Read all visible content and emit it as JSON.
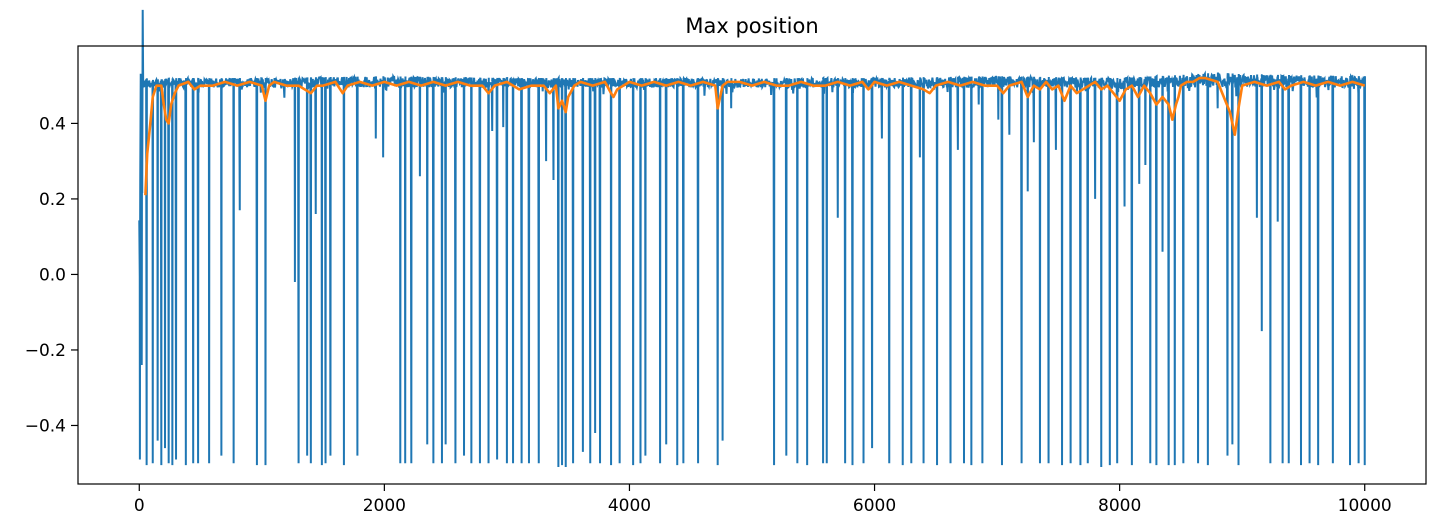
{
  "chart_data": {
    "type": "line",
    "title": "Max position",
    "xlabel": "",
    "ylabel": "",
    "xlim": [
      -500,
      10500
    ],
    "ylim": [
      -0.555,
      0.605
    ],
    "x_ticks": [
      0,
      2000,
      4000,
      6000,
      8000,
      10000
    ],
    "x_tick_labels": [
      "0",
      "2000",
      "4000",
      "6000",
      "8000",
      "10000"
    ],
    "y_ticks": [
      -0.4,
      -0.2,
      0.0,
      0.2,
      0.4
    ],
    "y_tick_labels": [
      "−0.4",
      "−0.2",
      "0.0",
      "0.2",
      "0.4"
    ],
    "grid": false,
    "legend": "none",
    "series": [
      {
        "color": "#1f77b4",
        "baseline": [
          [
            0,
            0.05
          ],
          [
            15,
            0.28
          ],
          [
            30,
            0.5
          ],
          [
            50,
            0.52
          ],
          [
            100,
            0.515
          ],
          [
            300,
            0.52
          ],
          [
            1000,
            0.52
          ],
          [
            2000,
            0.525
          ],
          [
            3000,
            0.52
          ],
          [
            4000,
            0.52
          ],
          [
            5000,
            0.52
          ],
          [
            6000,
            0.52
          ],
          [
            7000,
            0.525
          ],
          [
            8000,
            0.52
          ],
          [
            8600,
            0.53
          ],
          [
            8800,
            0.535
          ],
          [
            9000,
            0.53
          ],
          [
            10000,
            0.525
          ]
        ],
        "noise_low": 0.495,
        "spikes": [
          [
            5,
            -0.49
          ],
          [
            20,
            -0.24
          ],
          [
            60,
            -0.505
          ],
          [
            110,
            -0.5
          ],
          [
            150,
            -0.44
          ],
          [
            180,
            -0.505
          ],
          [
            210,
            -0.46
          ],
          [
            240,
            -0.5
          ],
          [
            270,
            -0.505
          ],
          [
            300,
            -0.49
          ],
          [
            380,
            -0.505
          ],
          [
            440,
            -0.5
          ],
          [
            480,
            -0.5
          ],
          [
            570,
            -0.5
          ],
          [
            670,
            -0.48
          ],
          [
            770,
            -0.5
          ],
          [
            820,
            0.17
          ],
          [
            960,
            -0.505
          ],
          [
            1030,
            -0.505
          ],
          [
            1270,
            -0.02
          ],
          [
            1300,
            -0.5
          ],
          [
            1370,
            -0.48
          ],
          [
            1400,
            -0.5
          ],
          [
            1440,
            0.16
          ],
          [
            1490,
            -0.505
          ],
          [
            1520,
            -0.5
          ],
          [
            1560,
            -0.48
          ],
          [
            1670,
            -0.505
          ],
          [
            1780,
            -0.48
          ],
          [
            1930,
            0.36
          ],
          [
            1990,
            0.31
          ],
          [
            2130,
            -0.5
          ],
          [
            2170,
            -0.5
          ],
          [
            2220,
            -0.5
          ],
          [
            2290,
            0.26
          ],
          [
            2350,
            -0.45
          ],
          [
            2400,
            -0.5
          ],
          [
            2470,
            -0.5
          ],
          [
            2500,
            -0.45
          ],
          [
            2580,
            -0.5
          ],
          [
            2650,
            -0.48
          ],
          [
            2710,
            -0.5
          ],
          [
            2780,
            -0.5
          ],
          [
            2850,
            -0.5
          ],
          [
            2880,
            0.38
          ],
          [
            2920,
            -0.49
          ],
          [
            2970,
            0.39
          ],
          [
            3000,
            -0.5
          ],
          [
            3050,
            -0.5
          ],
          [
            3120,
            -0.5
          ],
          [
            3180,
            -0.5
          ],
          [
            3260,
            -0.5
          ],
          [
            3320,
            0.3
          ],
          [
            3380,
            0.25
          ],
          [
            3420,
            -0.51
          ],
          [
            3450,
            -0.505
          ],
          [
            3480,
            -0.51
          ],
          [
            3540,
            -0.5
          ],
          [
            3620,
            -0.47
          ],
          [
            3680,
            -0.5
          ],
          [
            3720,
            -0.42
          ],
          [
            3760,
            -0.5
          ],
          [
            3850,
            -0.505
          ],
          [
            3920,
            -0.5
          ],
          [
            4030,
            -0.505
          ],
          [
            4090,
            -0.5
          ],
          [
            4130,
            -0.48
          ],
          [
            4250,
            -0.5
          ],
          [
            4300,
            -0.45
          ],
          [
            4390,
            -0.505
          ],
          [
            4440,
            -0.5
          ],
          [
            4560,
            -0.5
          ],
          [
            4720,
            -0.505
          ],
          [
            4760,
            -0.44
          ],
          [
            4830,
            0.44
          ],
          [
            5180,
            -0.505
          ],
          [
            5280,
            -0.48
          ],
          [
            5370,
            -0.5
          ],
          [
            5450,
            -0.505
          ],
          [
            5580,
            -0.5
          ],
          [
            5610,
            -0.5
          ],
          [
            5700,
            0.15
          ],
          [
            5760,
            -0.5
          ],
          [
            5820,
            -0.505
          ],
          [
            5910,
            -0.5
          ],
          [
            5980,
            -0.46
          ],
          [
            6060,
            0.36
          ],
          [
            6120,
            -0.5
          ],
          [
            6230,
            -0.505
          ],
          [
            6300,
            -0.5
          ],
          [
            6370,
            0.31
          ],
          [
            6400,
            -0.5
          ],
          [
            6510,
            -0.505
          ],
          [
            6620,
            -0.5
          ],
          [
            6680,
            0.33
          ],
          [
            6730,
            -0.5
          ],
          [
            6790,
            -0.505
          ],
          [
            6850,
            0.45
          ],
          [
            6880,
            -0.5
          ],
          [
            7010,
            0.41
          ],
          [
            7040,
            -0.505
          ],
          [
            7100,
            0.37
          ],
          [
            7200,
            -0.5
          ],
          [
            7250,
            0.22
          ],
          [
            7300,
            0.35
          ],
          [
            7350,
            -0.5
          ],
          [
            7420,
            -0.5
          ],
          [
            7480,
            0.33
          ],
          [
            7530,
            -0.505
          ],
          [
            7600,
            -0.5
          ],
          [
            7680,
            -0.505
          ],
          [
            7740,
            -0.5
          ],
          [
            7800,
            0.2
          ],
          [
            7850,
            -0.51
          ],
          [
            7920,
            -0.505
          ],
          [
            7980,
            -0.5
          ],
          [
            8040,
            0.18
          ],
          [
            8100,
            -0.505
          ],
          [
            8160,
            0.24
          ],
          [
            8210,
            0.29
          ],
          [
            8250,
            -0.5
          ],
          [
            8300,
            -0.505
          ],
          [
            8350,
            0.06
          ],
          [
            8400,
            -0.505
          ],
          [
            8450,
            -0.505
          ],
          [
            8520,
            -0.5
          ],
          [
            8640,
            -0.5
          ],
          [
            8720,
            -0.505
          ],
          [
            8800,
            0.44
          ],
          [
            8880,
            -0.48
          ],
          [
            8920,
            -0.45
          ],
          [
            8970,
            -0.505
          ],
          [
            9120,
            0.15
          ],
          [
            9160,
            -0.15
          ],
          [
            9230,
            -0.5
          ],
          [
            9290,
            0.14
          ],
          [
            9330,
            -0.5
          ],
          [
            9380,
            -0.5
          ],
          [
            9480,
            -0.505
          ],
          [
            9550,
            -0.5
          ],
          [
            9620,
            -0.505
          ],
          [
            9740,
            -0.5
          ],
          [
            9880,
            -0.505
          ],
          [
            9950,
            -0.5
          ],
          [
            10000,
            -0.505
          ]
        ]
      },
      {
        "color": "#ff7f0e",
        "points": [
          [
            50,
            0.21
          ],
          [
            65,
            0.32
          ],
          [
            90,
            0.4
          ],
          [
            110,
            0.47
          ],
          [
            140,
            0.5
          ],
          [
            180,
            0.5
          ],
          [
            200,
            0.45
          ],
          [
            220,
            0.41
          ],
          [
            240,
            0.4
          ],
          [
            260,
            0.45
          ],
          [
            290,
            0.48
          ],
          [
            320,
            0.5
          ],
          [
            400,
            0.51
          ],
          [
            450,
            0.49
          ],
          [
            500,
            0.5
          ],
          [
            600,
            0.5
          ],
          [
            700,
            0.51
          ],
          [
            800,
            0.5
          ],
          [
            900,
            0.51
          ],
          [
            1000,
            0.5
          ],
          [
            1030,
            0.46
          ],
          [
            1060,
            0.5
          ],
          [
            1100,
            0.51
          ],
          [
            1200,
            0.5
          ],
          [
            1300,
            0.5
          ],
          [
            1400,
            0.48
          ],
          [
            1450,
            0.5
          ],
          [
            1500,
            0.5
          ],
          [
            1600,
            0.51
          ],
          [
            1660,
            0.48
          ],
          [
            1700,
            0.5
          ],
          [
            1800,
            0.51
          ],
          [
            1900,
            0.5
          ],
          [
            2000,
            0.51
          ],
          [
            2100,
            0.5
          ],
          [
            2200,
            0.51
          ],
          [
            2300,
            0.5
          ],
          [
            2400,
            0.51
          ],
          [
            2500,
            0.5
          ],
          [
            2600,
            0.51
          ],
          [
            2700,
            0.5
          ],
          [
            2800,
            0.5
          ],
          [
            2850,
            0.48
          ],
          [
            2900,
            0.5
          ],
          [
            3000,
            0.51
          ],
          [
            3050,
            0.5
          ],
          [
            3100,
            0.49
          ],
          [
            3200,
            0.5
          ],
          [
            3300,
            0.5
          ],
          [
            3350,
            0.48
          ],
          [
            3400,
            0.5
          ],
          [
            3420,
            0.44
          ],
          [
            3450,
            0.46
          ],
          [
            3480,
            0.43
          ],
          [
            3500,
            0.47
          ],
          [
            3550,
            0.5
          ],
          [
            3600,
            0.51
          ],
          [
            3700,
            0.5
          ],
          [
            3800,
            0.51
          ],
          [
            3850,
            0.48
          ],
          [
            3870,
            0.47
          ],
          [
            3900,
            0.49
          ],
          [
            3950,
            0.5
          ],
          [
            4000,
            0.51
          ],
          [
            4100,
            0.5
          ],
          [
            4200,
            0.51
          ],
          [
            4300,
            0.5
          ],
          [
            4400,
            0.51
          ],
          [
            4500,
            0.5
          ],
          [
            4600,
            0.51
          ],
          [
            4700,
            0.5
          ],
          [
            4720,
            0.44
          ],
          [
            4760,
            0.5
          ],
          [
            4800,
            0.51
          ],
          [
            4900,
            0.51
          ],
          [
            5000,
            0.5
          ],
          [
            5100,
            0.51
          ],
          [
            5200,
            0.5
          ],
          [
            5300,
            0.5
          ],
          [
            5400,
            0.51
          ],
          [
            5500,
            0.5
          ],
          [
            5600,
            0.5
          ],
          [
            5700,
            0.51
          ],
          [
            5800,
            0.5
          ],
          [
            5900,
            0.51
          ],
          [
            5950,
            0.49
          ],
          [
            6000,
            0.51
          ],
          [
            6100,
            0.5
          ],
          [
            6200,
            0.51
          ],
          [
            6300,
            0.5
          ],
          [
            6400,
            0.49
          ],
          [
            6450,
            0.48
          ],
          [
            6500,
            0.5
          ],
          [
            6600,
            0.51
          ],
          [
            6700,
            0.5
          ],
          [
            6800,
            0.51
          ],
          [
            6900,
            0.5
          ],
          [
            7000,
            0.5
          ],
          [
            7050,
            0.48
          ],
          [
            7100,
            0.5
          ],
          [
            7200,
            0.51
          ],
          [
            7250,
            0.47
          ],
          [
            7300,
            0.5
          ],
          [
            7350,
            0.49
          ],
          [
            7400,
            0.51
          ],
          [
            7450,
            0.49
          ],
          [
            7500,
            0.5
          ],
          [
            7550,
            0.46
          ],
          [
            7600,
            0.5
          ],
          [
            7650,
            0.48
          ],
          [
            7700,
            0.49
          ],
          [
            7750,
            0.5
          ],
          [
            7800,
            0.51
          ],
          [
            7850,
            0.49
          ],
          [
            7900,
            0.5
          ],
          [
            7950,
            0.48
          ],
          [
            8000,
            0.46
          ],
          [
            8050,
            0.49
          ],
          [
            8100,
            0.5
          ],
          [
            8150,
            0.47
          ],
          [
            8200,
            0.5
          ],
          [
            8250,
            0.48
          ],
          [
            8300,
            0.45
          ],
          [
            8350,
            0.47
          ],
          [
            8400,
            0.45
          ],
          [
            8430,
            0.41
          ],
          [
            8460,
            0.45
          ],
          [
            8480,
            0.47
          ],
          [
            8500,
            0.5
          ],
          [
            8550,
            0.51
          ],
          [
            8600,
            0.51
          ],
          [
            8650,
            0.52
          ],
          [
            8700,
            0.52
          ],
          [
            8800,
            0.51
          ],
          [
            8850,
            0.47
          ],
          [
            8900,
            0.43
          ],
          [
            8940,
            0.37
          ],
          [
            8970,
            0.44
          ],
          [
            9000,
            0.5
          ],
          [
            9100,
            0.51
          ],
          [
            9200,
            0.5
          ],
          [
            9300,
            0.51
          ],
          [
            9350,
            0.49
          ],
          [
            9400,
            0.5
          ],
          [
            9500,
            0.51
          ],
          [
            9600,
            0.5
          ],
          [
            9700,
            0.51
          ],
          [
            9800,
            0.5
          ],
          [
            9900,
            0.51
          ],
          [
            10000,
            0.5
          ]
        ]
      }
    ]
  }
}
